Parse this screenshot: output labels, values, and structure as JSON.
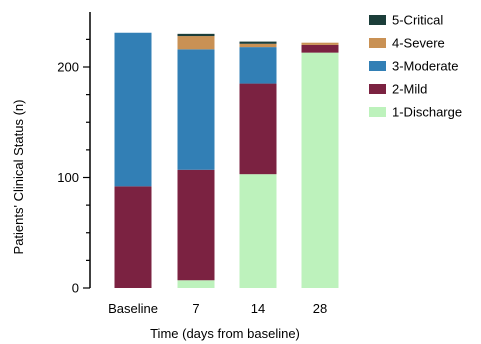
{
  "chart_data": {
    "type": "bar",
    "stacked": true,
    "xlabel": "Time (days from baseline)",
    "ylabel": "Patients' Clinical Status (n)",
    "categories": [
      "Baseline",
      "7",
      "14",
      "28"
    ],
    "ylim": [
      0,
      250
    ],
    "yticks": [
      0,
      100,
      200
    ],
    "series": [
      {
        "name": "1-Discharge",
        "color": "#bdf2bc",
        "values": [
          0,
          7,
          103,
          213
        ]
      },
      {
        "name": "2-Mild",
        "color": "#7b2241",
        "values": [
          92,
          100,
          82,
          7
        ]
      },
      {
        "name": "3-Moderate",
        "color": "#327fb5",
        "values": [
          139,
          109,
          33,
          0
        ]
      },
      {
        "name": "4-Severe",
        "color": "#c99154",
        "values": [
          0,
          12,
          3,
          2
        ]
      },
      {
        "name": "5-Critical",
        "color": "#1b3d39",
        "values": [
          0,
          2,
          2,
          0
        ]
      }
    ],
    "legend": {
      "position": "top-right",
      "order": [
        "5-Critical",
        "4-Severe",
        "3-Moderate",
        "2-Mild",
        "1-Discharge"
      ]
    }
  }
}
